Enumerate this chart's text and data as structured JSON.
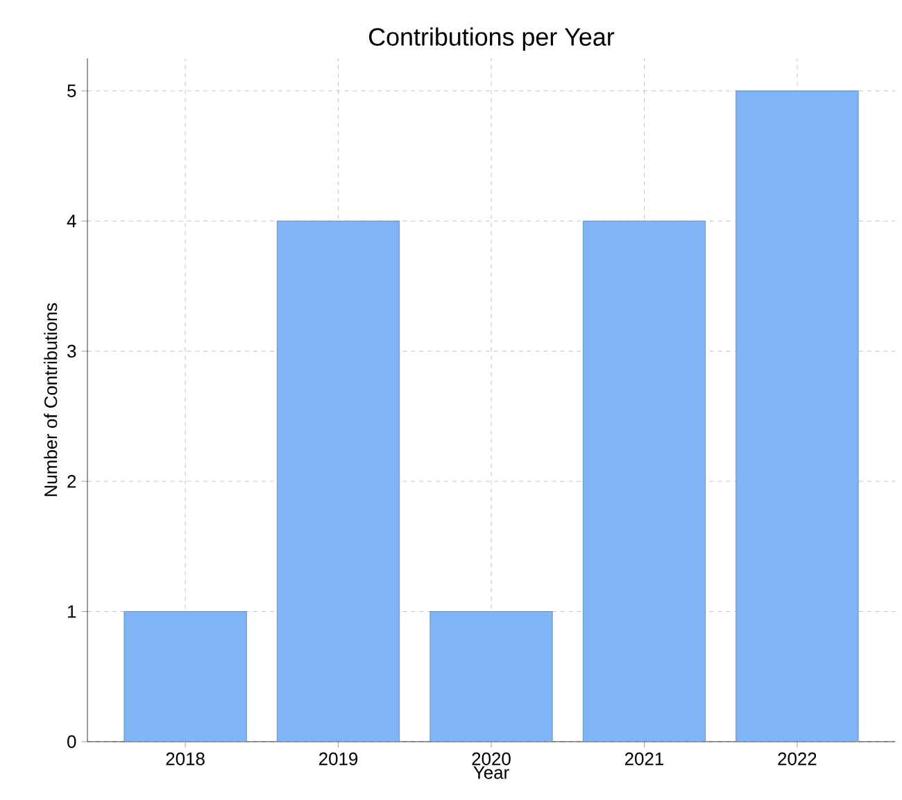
{
  "chart_data": {
    "type": "bar",
    "title": "Contributions per Year",
    "xlabel": "Year",
    "ylabel": "Number of Contributions",
    "categories": [
      "2018",
      "2019",
      "2020",
      "2021",
      "2022"
    ],
    "values": [
      1,
      4,
      1,
      4,
      5
    ],
    "color": "#7fb5f5",
    "ylim": [
      0,
      5.25
    ],
    "yticks": [
      0,
      1,
      2,
      3,
      4,
      5
    ],
    "grid": true
  }
}
